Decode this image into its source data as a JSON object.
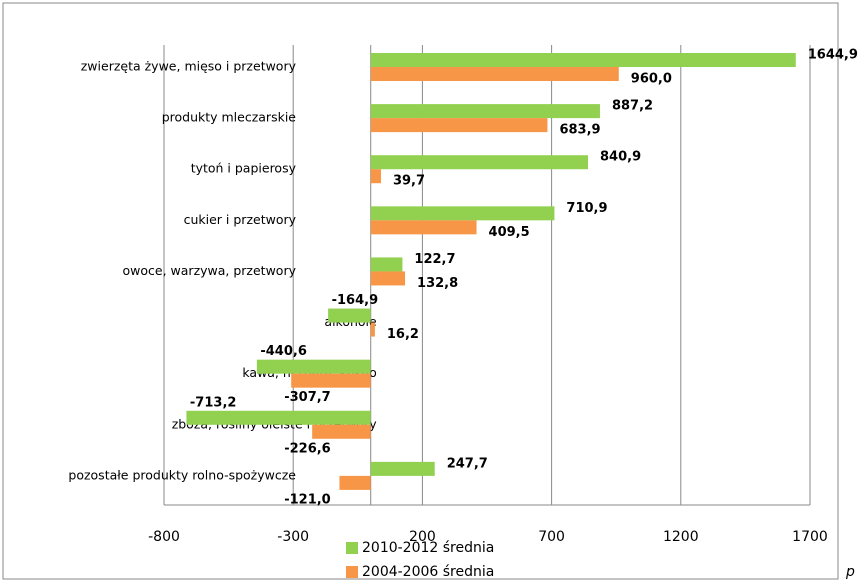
{
  "chart_data": {
    "type": "bar",
    "orientation": "horizontal",
    "categories": [
      "zwierzęta żywe, mięso i przetwory",
      "produkty mleczarskie",
      "tytoń i papierosy",
      "cukier i przetwory",
      "owoce, warzywa, przetwory",
      "alkohole",
      "kawa, herbata, kakao",
      "zboża, rośliny oleiste i przetwory",
      "pozostałe produkty rolno-spożywcze"
    ],
    "series": [
      {
        "name": "2010-2012 średnia",
        "color": "#92d050",
        "values": [
          1644.9,
          887.2,
          840.9,
          710.9,
          122.7,
          -164.9,
          -440.6,
          -713.2,
          247.7
        ],
        "value_labels": [
          "1644,9",
          "887,2",
          "840,9",
          "710,9",
          "122,7",
          "-164,9",
          "-440,6",
          "-713,2",
          "247,7"
        ]
      },
      {
        "name": "2004-2006 średnia",
        "color": "#f79646",
        "values": [
          960.0,
          683.9,
          39.7,
          409.5,
          132.8,
          16.2,
          -307.7,
          -226.6,
          -121.0
        ],
        "value_labels": [
          "960,0",
          "683,9",
          "39,7",
          "409,5",
          "132,8",
          "16,2",
          "-307,7",
          "-226,6",
          "-121,0"
        ]
      }
    ],
    "xlim": [
      -800,
      1700
    ],
    "xticks": [
      -800,
      -300,
      200,
      700,
      1200,
      1700
    ],
    "grid": true,
    "footer": "p"
  }
}
